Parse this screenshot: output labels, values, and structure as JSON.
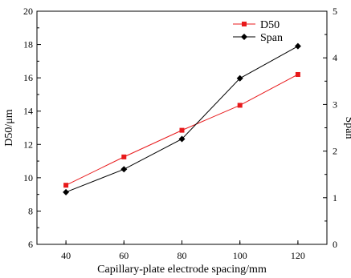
{
  "chart_data": {
    "type": "line",
    "title": "",
    "xlabel": "Capillary-plate electrode spacing/mm",
    "ylabel": "D50/μm",
    "y2label": "Span",
    "xlim": [
      30,
      130
    ],
    "ylim": [
      6,
      20
    ],
    "y2lim": [
      0,
      5
    ],
    "x_ticks": [
      40,
      60,
      80,
      100,
      120
    ],
    "y_ticks": [
      6,
      8,
      10,
      12,
      14,
      16,
      18,
      20
    ],
    "y2_ticks": [
      0,
      1,
      2,
      3,
      4,
      5
    ],
    "grid": false,
    "legend_position": "top-right",
    "series": [
      {
        "name": "D50",
        "axis": "left",
        "color": "#e8191b",
        "marker": "square",
        "x": [
          40,
          60,
          80,
          100,
          120
        ],
        "values": [
          9.55,
          11.25,
          12.85,
          14.35,
          16.2
        ]
      },
      {
        "name": "Span",
        "axis": "right",
        "color": "#000000",
        "marker": "diamond",
        "x": [
          40,
          60,
          80,
          100,
          120
        ],
        "values": [
          1.12,
          1.61,
          2.26,
          3.56,
          4.25
        ]
      }
    ]
  }
}
